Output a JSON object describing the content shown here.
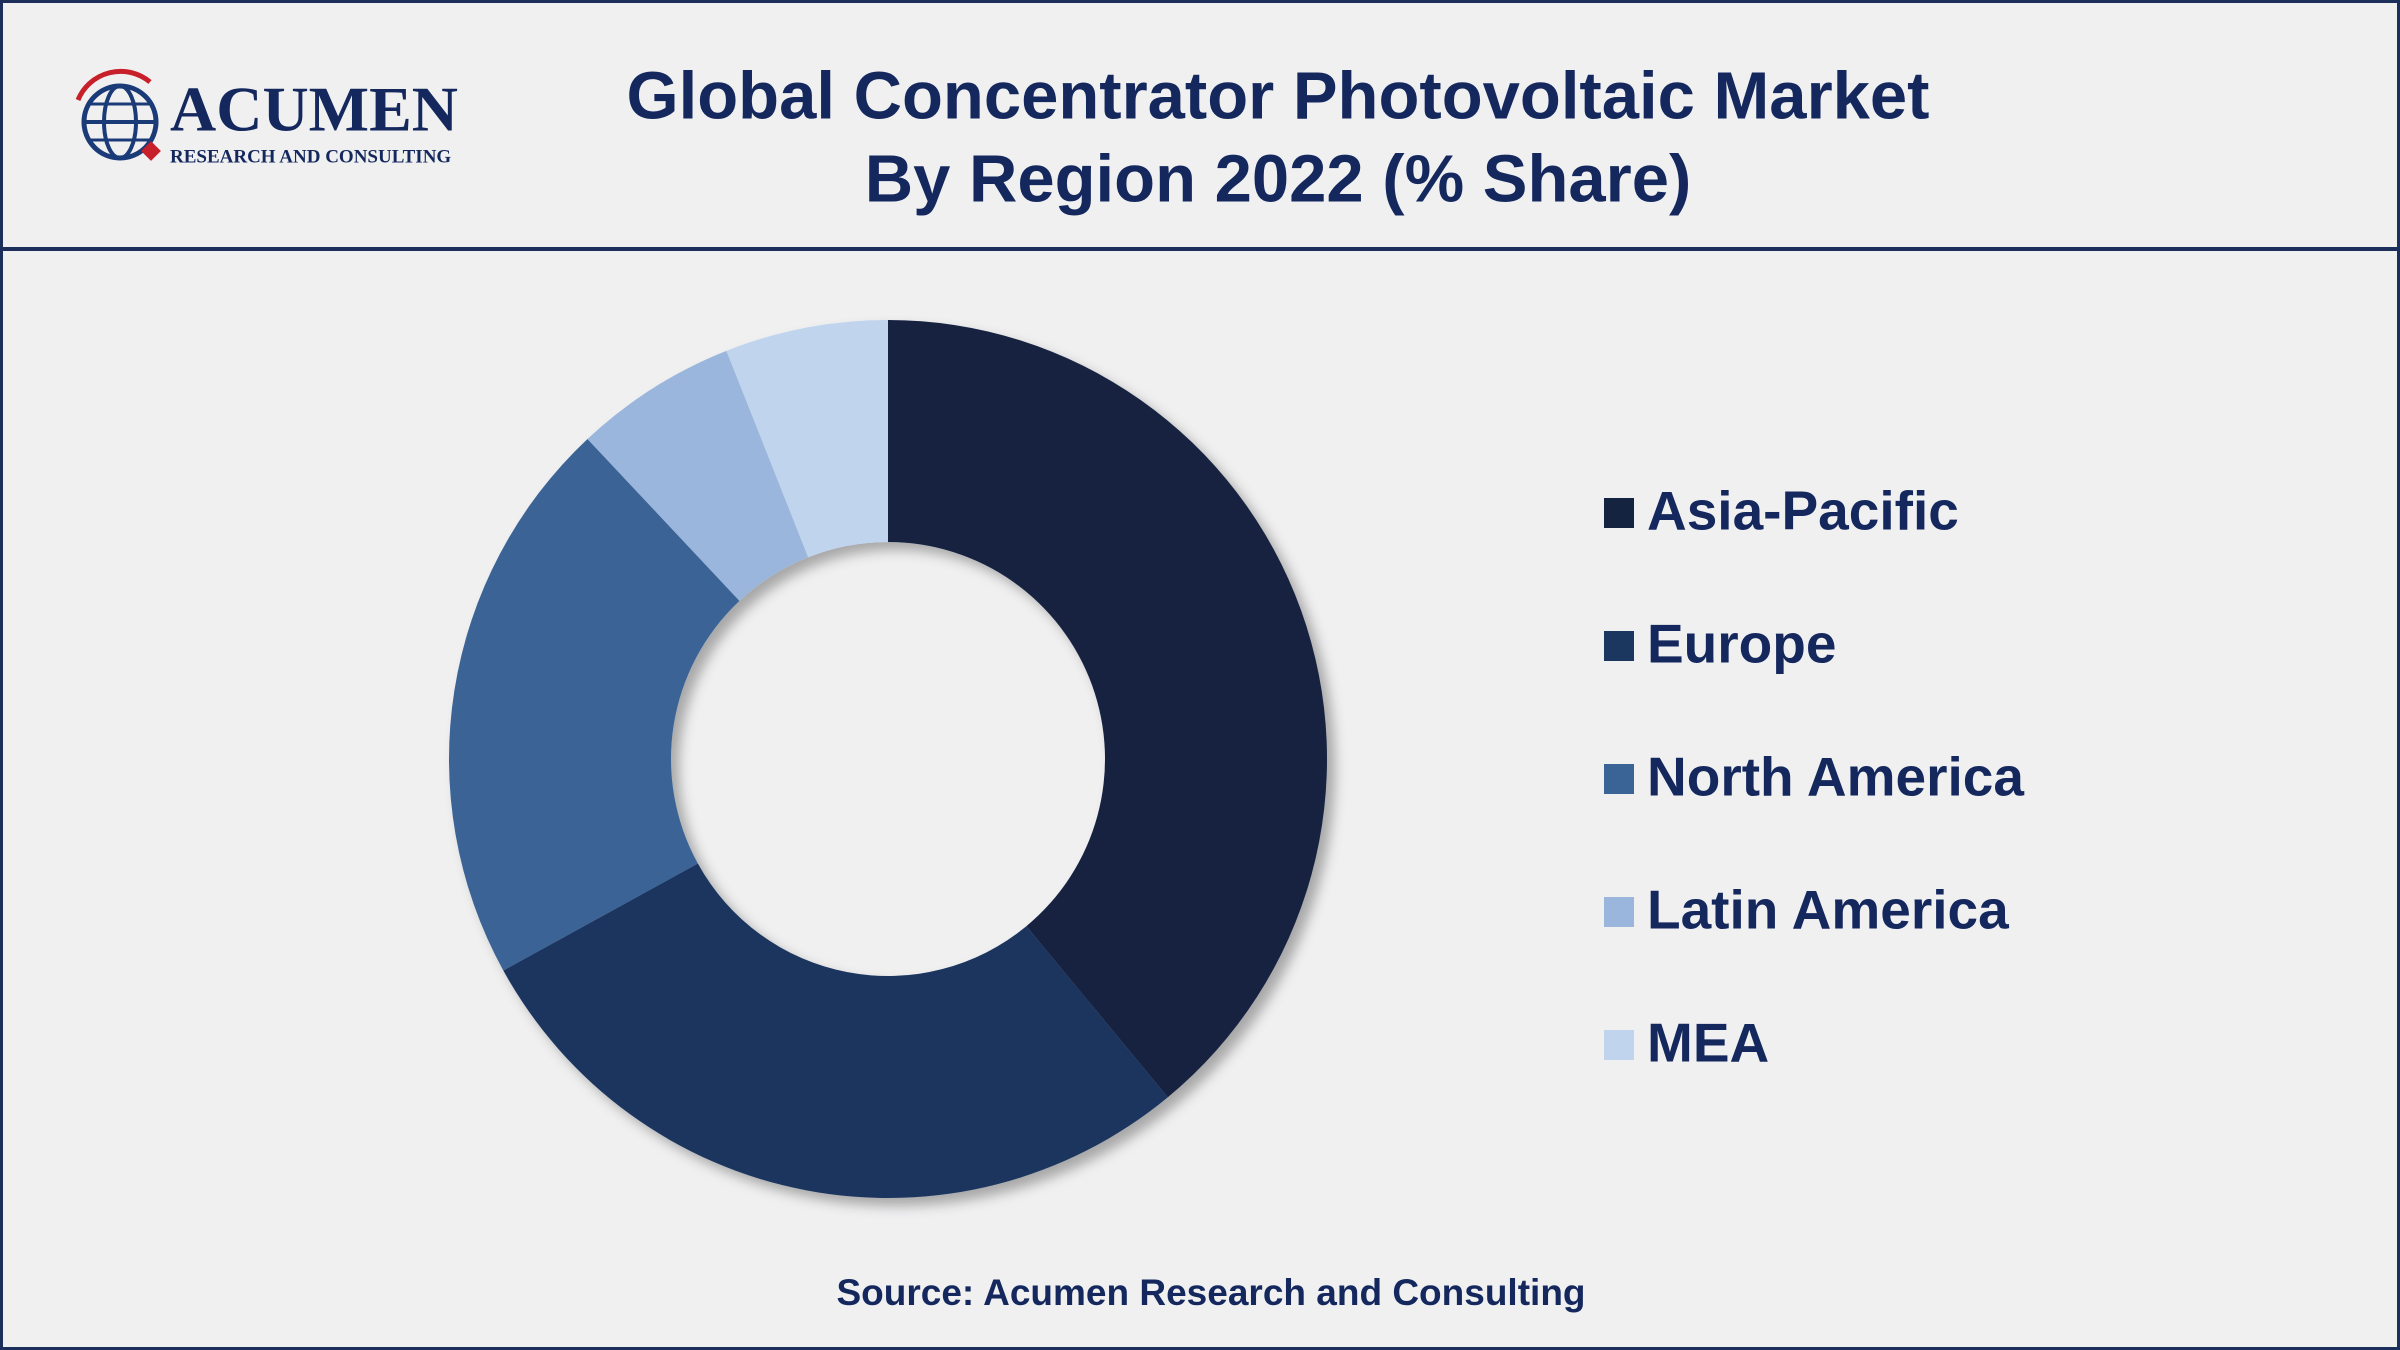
{
  "logo": {
    "name": "ACUMEN",
    "tagline": "RESEARCH AND CONSULTING"
  },
  "chart_data": {
    "type": "donut",
    "title": [
      "Global Concentrator Photovoltaic Market",
      "By Region 2022 (% Share)"
    ],
    "categories": [
      "Asia-Pacific",
      "Europe",
      "North America",
      "Latin America",
      "MEA"
    ],
    "values": [
      39,
      28,
      21,
      6,
      6
    ],
    "colors": [
      "#14233f",
      "#1b365f",
      "#3a6495",
      "#9ab6dc",
      "#c0d4ee"
    ],
    "legend": "right",
    "source": "Source: Acumen Research and Consulting"
  }
}
